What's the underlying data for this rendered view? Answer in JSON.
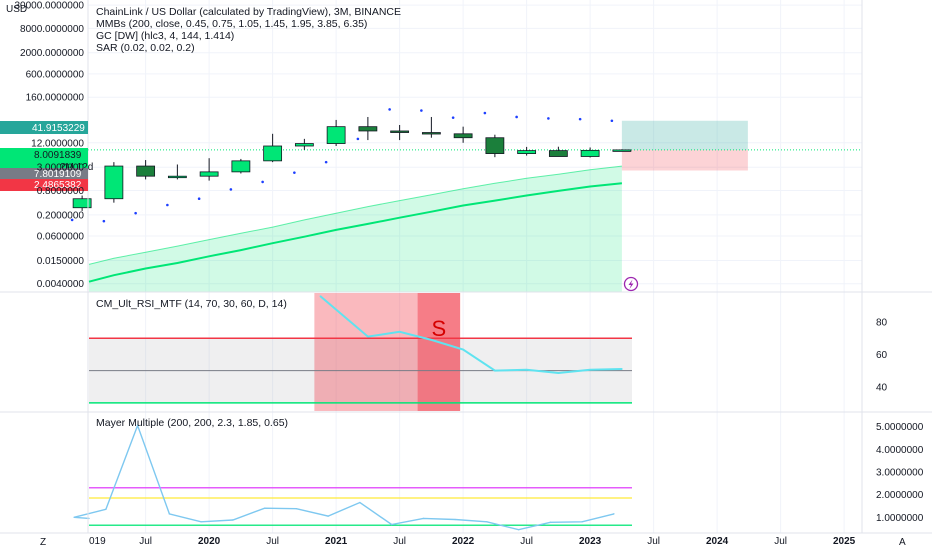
{
  "header": {
    "currency": "USD",
    "title": "ChainLink / US Dollar (calculated by TradingView), 3M, BINANCE",
    "indicators": [
      "MMBs (200, close, 0.45, 0.75, 1.05, 1.45, 1.95, 3.85, 6.35)",
      "GC [DW] (hlc3, 4, 144, 1.414)",
      "SAR (0.02, 0.02, 0.2)"
    ]
  },
  "price_axis": {
    "ticks": [
      "30000.0000000",
      "8000.0000000",
      "2000.0000000",
      "600.0000000",
      "160.0000000",
      "12.0000000",
      "3.0000000",
      "0.8000000",
      "0.2000000",
      "0.0600000",
      "0.0150000",
      "0.0040000"
    ],
    "tick_values": [
      30000,
      8000,
      2000,
      600,
      160,
      12,
      3,
      0.8,
      0.2,
      0.06,
      0.015,
      0.004
    ],
    "badges": {
      "top": "41.9153229",
      "price": "8.0091839",
      "countdown": "2M 12d",
      "mid": "7.8019109",
      "bottom": "2.4865382"
    },
    "colors": {
      "top": "#26a69a",
      "price": "#00e676",
      "mid": "#787b86",
      "bottom": "#f23645"
    }
  },
  "chart_data": [
    {
      "type": "candlestick",
      "title": "ChainLink / US Dollar (calculated by TradingView), 3M, BINANCE",
      "scale": "log",
      "ylim": [
        0.0025,
        40000
      ],
      "x": [
        "2019-01",
        "2019-04",
        "2019-07",
        "2019-10",
        "2020-01",
        "2020-04",
        "2020-07",
        "2020-10",
        "2021-01",
        "2021-04",
        "2021-07",
        "2021-10",
        "2022-01",
        "2022-04",
        "2022-07",
        "2022-10",
        "2023-01",
        "2023-04"
      ],
      "candles": [
        {
          "o": 0.3,
          "h": 0.6,
          "l": 0.25,
          "c": 0.5
        },
        {
          "o": 0.5,
          "h": 4.0,
          "l": 0.4,
          "c": 3.2
        },
        {
          "o": 3.2,
          "h": 4.5,
          "l": 1.5,
          "c": 1.8
        },
        {
          "o": 1.8,
          "h": 3.5,
          "l": 1.5,
          "c": 1.8
        },
        {
          "o": 1.8,
          "h": 5.0,
          "l": 1.4,
          "c": 2.3
        },
        {
          "o": 2.3,
          "h": 4.8,
          "l": 2.1,
          "c": 4.3
        },
        {
          "o": 4.3,
          "h": 20.0,
          "l": 4.0,
          "c": 10.0
        },
        {
          "o": 10.0,
          "h": 15.0,
          "l": 8.0,
          "c": 11.5
        },
        {
          "o": 11.5,
          "h": 44.0,
          "l": 10.0,
          "c": 30.0
        },
        {
          "o": 30.0,
          "h": 52.0,
          "l": 14.0,
          "c": 23.5
        },
        {
          "o": 23.5,
          "h": 33.0,
          "l": 14.0,
          "c": 21.5
        },
        {
          "o": 21.5,
          "h": 52.0,
          "l": 16.0,
          "c": 20.0
        },
        {
          "o": 20.0,
          "h": 30.0,
          "l": 12.0,
          "c": 16.0
        },
        {
          "o": 16.0,
          "h": 19.0,
          "l": 5.3,
          "c": 6.5
        },
        {
          "o": 6.5,
          "h": 9.5,
          "l": 5.8,
          "c": 7.7
        },
        {
          "o": 7.7,
          "h": 9.6,
          "l": 5.8,
          "c": 5.5
        },
        {
          "o": 5.5,
          "h": 9.2,
          "l": 5.2,
          "c": 7.8
        },
        {
          "o": 7.8,
          "h": 8.3,
          "l": 7.5,
          "c": 8.01
        }
      ],
      "sar": [
        0.15,
        0.14,
        0.22,
        0.35,
        0.5,
        0.85,
        1.3,
        2.2,
        4.0,
        15.0,
        80.0,
        75.0,
        50.0,
        65.0,
        52.0,
        48.0,
        46.0,
        42.0
      ],
      "mmb_center": [
        0.0045,
        0.0065,
        0.0095,
        0.013,
        0.019,
        0.027,
        0.04,
        0.058,
        0.085,
        0.12,
        0.17,
        0.24,
        0.34,
        0.45,
        0.6,
        0.78,
        1.0,
        1.2
      ],
      "mmb_upper": [
        0.012,
        0.017,
        0.024,
        0.034,
        0.049,
        0.07,
        0.1,
        0.15,
        0.22,
        0.32,
        0.45,
        0.63,
        0.88,
        1.2,
        1.6,
        2.0,
        2.6,
        3.2
      ],
      "position": {
        "entry": 8.0091839,
        "target": 41.9153229,
        "stop": 2.4865382
      },
      "current_price": 8.0091839
    },
    {
      "type": "line",
      "title": "CM_Ult_RSI_MTF (14, 70, 30, 60, D, 14)",
      "ylim": [
        25,
        98
      ],
      "yticks": [
        40,
        60,
        80
      ],
      "levels": {
        "overbought": 70,
        "middle": 50,
        "oversold": 30
      },
      "colors": {
        "line": "#5fe3f0",
        "overbought": "#f23645",
        "oversold": "#00e676",
        "middle": "#787b86"
      },
      "x": [
        "2021-01",
        "2021-04",
        "2021-07",
        "2021-10",
        "2022-01",
        "2022-04",
        "2022-07",
        "2022-10",
        "2023-01",
        "2023-04"
      ],
      "values": [
        96,
        71,
        74,
        69,
        63,
        50,
        50.5,
        48.5,
        50.5,
        51
      ],
      "signal_label": "S"
    },
    {
      "type": "line",
      "title": "Mayer Multiple (200, 200, 2.3, 1.85, 0.65)",
      "ylim": [
        0.35,
        5.6
      ],
      "yticks": [
        "5.0000000",
        "4.0000000",
        "3.0000000",
        "2.0000000",
        "1.0000000"
      ],
      "ytick_values": [
        5,
        4,
        3,
        2,
        1
      ],
      "levels": [
        2.3,
        1.85,
        0.65
      ],
      "level_colors": [
        "#e040fb",
        "#ffeb3b",
        "#00e676"
      ],
      "line_color": "#7ec8f0",
      "x": [
        "2018-12",
        "2019-01",
        "2019-04",
        "2019-07",
        "2019-10",
        "2020-01",
        "2020-04",
        "2020-07",
        "2020-10",
        "2021-01",
        "2021-04",
        "2021-07",
        "2021-10",
        "2022-01",
        "2022-04",
        "2022-07",
        "2022-10",
        "2023-01",
        "2023-04"
      ],
      "values": [
        0.95,
        1.0,
        1.35,
        5.05,
        1.15,
        0.8,
        0.88,
        1.4,
        1.38,
        1.05,
        1.65,
        0.68,
        0.95,
        0.9,
        0.8,
        0.45,
        0.78,
        0.8,
        1.15
      ]
    }
  ],
  "time_axis": {
    "labels": [
      "019",
      "Jul",
      "2020",
      "Jul",
      "2021",
      "Jul",
      "2022",
      "Jul",
      "2023",
      "Jul",
      "2024",
      "Jul",
      "2025"
    ],
    "bold": [
      false,
      false,
      true,
      false,
      true,
      false,
      true,
      false,
      true,
      false,
      true,
      false,
      true
    ],
    "corner_left": "Z",
    "corner_right": "A"
  },
  "flash_icon": "lightning-icon"
}
